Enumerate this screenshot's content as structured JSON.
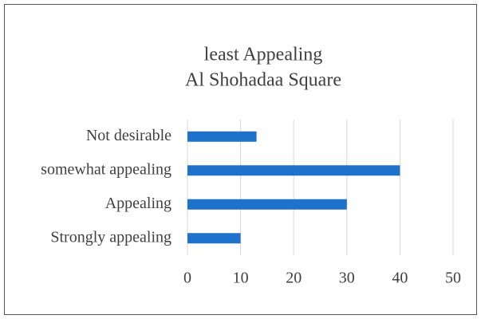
{
  "chart_data": {
    "type": "bar",
    "orientation": "horizontal",
    "title": [
      "least Appealing",
      "Al Shohadaa Square"
    ],
    "categories": [
      "Not desirable",
      "somewhat appealing",
      "Appealing",
      "Strongly appealing"
    ],
    "values": [
      13,
      40,
      30,
      10
    ],
    "color": "#1f72cc",
    "xlim": [
      0,
      50
    ],
    "xticks": [
      0,
      10,
      20,
      30,
      40,
      50
    ],
    "grid": true
  }
}
